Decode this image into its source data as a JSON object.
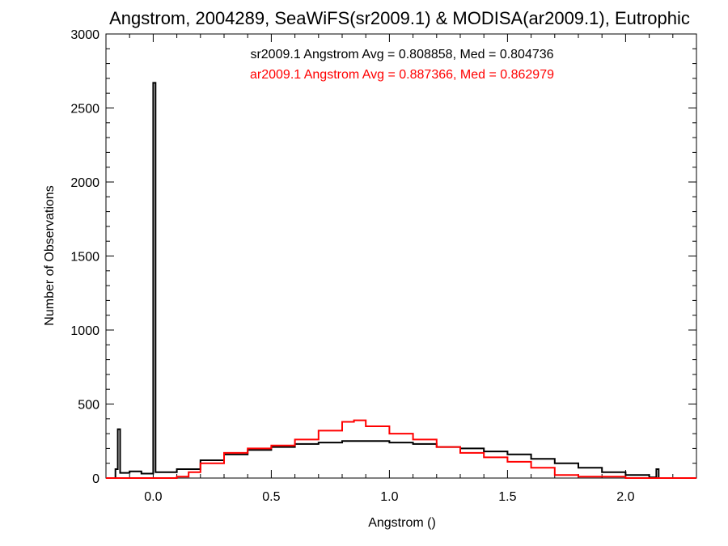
{
  "chart_data": {
    "type": "line",
    "title": "Angstrom, 2004289, SeaWiFS(sr2009.1) & MODISA(ar2009.1), Eutrophic",
    "xlabel": "Angstrom ()",
    "ylabel": "Number of Observations",
    "xlim": [
      -0.2,
      2.3
    ],
    "ylim": [
      0,
      3000
    ],
    "xticks": [
      0.0,
      0.5,
      1.0,
      1.5,
      2.0
    ],
    "xtick_labels": [
      "0.0",
      "0.5",
      "1.0",
      "1.5",
      "2.0"
    ],
    "yticks": [
      0,
      500,
      1000,
      1500,
      2000,
      2500,
      3000
    ],
    "ytick_labels": [
      "0",
      "500",
      "1000",
      "1500",
      "2000",
      "2500",
      "3000"
    ],
    "grid": false,
    "annotations": [
      {
        "text": "sr2009.1 Angstrom Avg = 0.808858, Med = 0.804736",
        "color": "#000000"
      },
      {
        "text": "ar2009.1 Angstrom Avg = 0.887366, Med = 0.862979",
        "color": "#ff0000"
      }
    ],
    "series": [
      {
        "color": "#000000",
        "style": "step",
        "x": [
          -0.2,
          -0.16,
          -0.15,
          -0.14,
          -0.1,
          -0.05,
          0.0,
          0.005,
          0.01,
          0.1,
          0.2,
          0.3,
          0.4,
          0.5,
          0.6,
          0.7,
          0.8,
          0.9,
          1.0,
          1.1,
          1.2,
          1.3,
          1.4,
          1.5,
          1.6,
          1.7,
          1.8,
          1.9,
          2.0,
          2.1,
          2.13,
          2.14,
          2.2,
          2.3
        ],
        "values": [
          0,
          60,
          330,
          35,
          45,
          30,
          2670,
          2670,
          40,
          60,
          120,
          160,
          190,
          210,
          230,
          240,
          250,
          250,
          240,
          230,
          210,
          200,
          180,
          160,
          130,
          100,
          70,
          40,
          20,
          5,
          60,
          0,
          0,
          0
        ]
      },
      {
        "color": "#ff0000",
        "style": "step",
        "x": [
          -0.2,
          0.0,
          0.1,
          0.15,
          0.2,
          0.3,
          0.4,
          0.5,
          0.6,
          0.7,
          0.8,
          0.85,
          0.9,
          1.0,
          1.1,
          1.2,
          1.3,
          1.4,
          1.5,
          1.6,
          1.7,
          1.8,
          2.0,
          2.3
        ],
        "values": [
          0,
          0,
          10,
          40,
          100,
          170,
          200,
          220,
          260,
          320,
          380,
          390,
          350,
          300,
          260,
          210,
          170,
          140,
          110,
          70,
          20,
          10,
          0,
          0
        ]
      }
    ]
  }
}
